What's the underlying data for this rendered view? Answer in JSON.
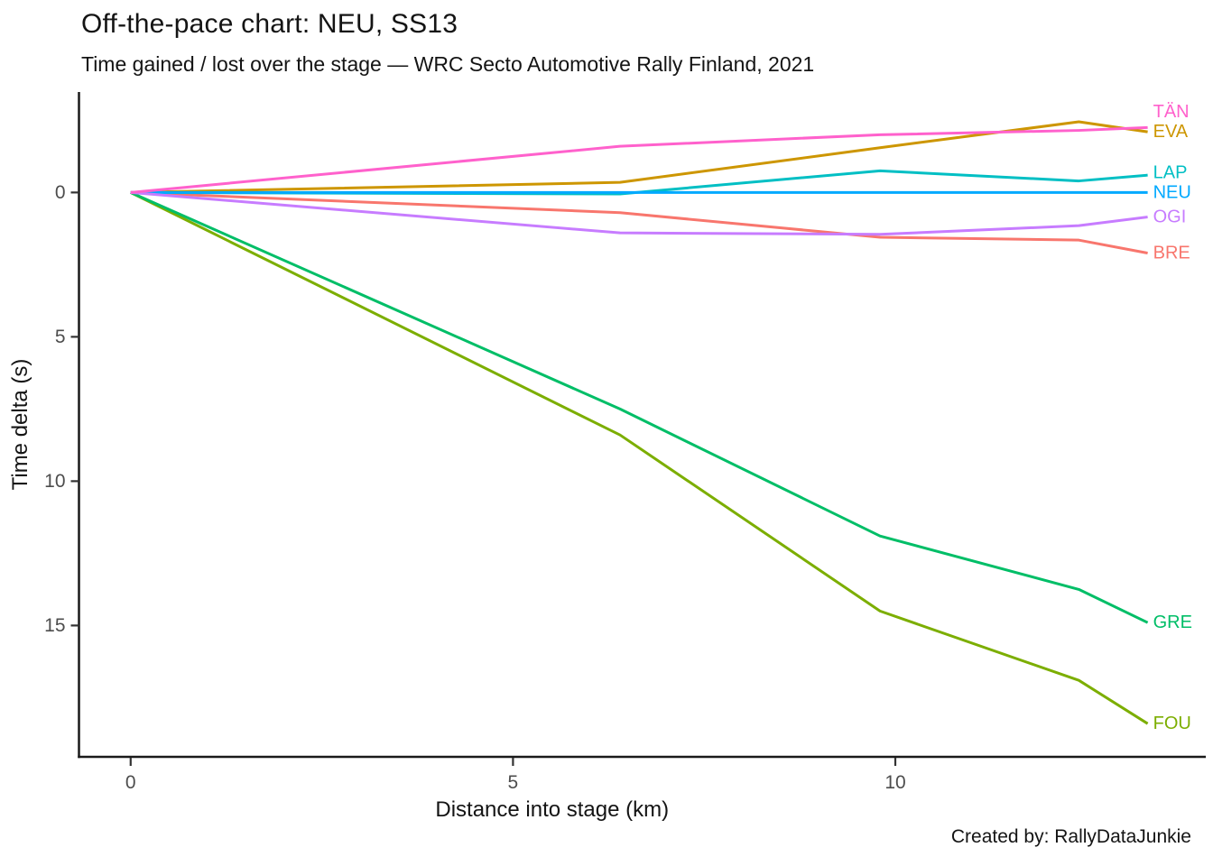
{
  "header": {
    "title": "Off-the-pace chart: NEU, SS13",
    "subtitle": "Time gained / lost over the stage — WRC Secto Automotive Rally Finland, 2021"
  },
  "footer": {
    "caption": "Created by: RallyDataJunkie"
  },
  "chart_data": {
    "type": "line",
    "title": "Off-the-pace chart: NEU, SS13",
    "subtitle": "Time gained / lost over the stage — WRC Secto Automotive Rally Finland, 2021",
    "xlabel": "Distance into stage (km)",
    "ylabel": "Time delta (s)",
    "x_units": "km",
    "y_units": "s",
    "x": [
      0,
      6.4,
      9.8,
      12.4,
      13.3
    ],
    "series": [
      {
        "name": "BRE",
        "color": "#F8766D",
        "values": [
          0,
          0.7,
          1.55,
          1.65,
          2.1
        ]
      },
      {
        "name": "EVA",
        "color": "#CD9600",
        "values": [
          0,
          -0.35,
          -1.55,
          -2.45,
          -2.1
        ]
      },
      {
        "name": "FOU",
        "color": "#7CAE00",
        "values": [
          0,
          8.4,
          14.5,
          16.9,
          18.4
        ]
      },
      {
        "name": "GRE",
        "color": "#00BE67",
        "values": [
          0,
          7.5,
          11.9,
          13.75,
          14.9
        ]
      },
      {
        "name": "LAP",
        "color": "#00BFC4",
        "values": [
          0,
          0.05,
          -0.75,
          -0.4,
          -0.6
        ]
      },
      {
        "name": "NEU",
        "color": "#00A9FF",
        "values": [
          0,
          0,
          0,
          0,
          0
        ]
      },
      {
        "name": "OGI",
        "color": "#C77CFF",
        "values": [
          0,
          1.4,
          1.45,
          1.15,
          0.85
        ]
      },
      {
        "name": "TÄN",
        "color": "#FF61CC",
        "values": [
          0,
          -1.6,
          -2.0,
          -2.15,
          -2.25
        ]
      }
    ],
    "x_ticks": [
      0,
      5,
      10
    ],
    "y_ticks": [
      0,
      5,
      10,
      15
    ],
    "xlim": [
      -0.676,
      14.06
    ],
    "ylim": [
      -3.48,
      19.55
    ],
    "y_increases_downward": true,
    "grid": false,
    "legend": "direct line-end labels colored by series",
    "axis_color": "#1a1a1a",
    "tick_label_color": "#4d4d4d"
  }
}
